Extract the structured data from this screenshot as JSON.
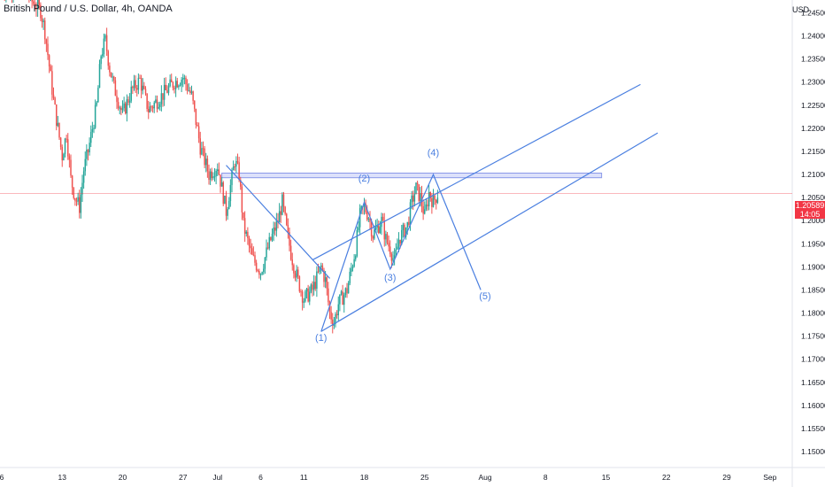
{
  "header": {
    "symbol_title": "British Pound / U.S. Dollar, 4h, OANDA",
    "currency": "USD"
  },
  "price_tag": {
    "price": "1.20589",
    "countdown": "14:05"
  },
  "colors": {
    "bull": "#26a69a",
    "bear": "#ef5350",
    "line": "#4a7fe0",
    "price_line": "#f23645",
    "zone_fill": "#d4dafa",
    "zone_border": "#8a98e8",
    "axis_text": "#131722",
    "grid": "#f0f3fa"
  },
  "chart_data": {
    "type": "candlestick",
    "y_axis": {
      "ticks": [
        "1.24500",
        "1.24000",
        "1.23500",
        "1.23000",
        "1.22500",
        "1.22000",
        "1.21500",
        "1.21000",
        "1.20500",
        "1.20000",
        "1.19500",
        "1.19000",
        "1.18500",
        "1.18000",
        "1.17500",
        "1.17000",
        "1.16500",
        "1.16000",
        "1.15500",
        "1.15000"
      ],
      "range": [
        1.146,
        1.2525
      ]
    },
    "x_axis": {
      "ticks": [
        {
          "label": "6",
          "day": 6
        },
        {
          "label": "13",
          "day": 13
        },
        {
          "label": "20",
          "day": 20
        },
        {
          "label": "27",
          "day": 27
        },
        {
          "label": "Jul",
          "day": 31
        },
        {
          "label": "6",
          "day": 36
        },
        {
          "label": "11",
          "day": 41
        },
        {
          "label": "18",
          "day": 48
        },
        {
          "label": "25",
          "day": 55
        },
        {
          "label": "Aug",
          "day": 62
        },
        {
          "label": "8",
          "day": 69
        },
        {
          "label": "15",
          "day": 76
        },
        {
          "label": "22",
          "day": 83
        },
        {
          "label": "29",
          "day": 90
        },
        {
          "label": "Sep",
          "day": 95
        }
      ]
    },
    "price_path": [
      [
        6.0,
        1.25
      ],
      [
        8.5,
        1.251
      ],
      [
        9.5,
        1.2475
      ],
      [
        10.5,
        1.2455
      ],
      [
        11.0,
        1.241
      ],
      [
        12.0,
        1.226
      ],
      [
        13.0,
        1.214
      ],
      [
        13.5,
        1.219
      ],
      [
        14.0,
        1.209
      ],
      [
        14.5,
        1.205
      ],
      [
        15.0,
        1.203
      ],
      [
        15.5,
        1.211
      ],
      [
        16.0,
        1.215
      ],
      [
        17.0,
        1.225
      ],
      [
        17.5,
        1.236
      ],
      [
        18.0,
        1.239
      ],
      [
        18.5,
        1.233
      ],
      [
        19.0,
        1.229
      ],
      [
        20.0,
        1.223
      ],
      [
        21.0,
        1.228
      ],
      [
        22.0,
        1.2305
      ],
      [
        23.0,
        1.224
      ],
      [
        24.0,
        1.226
      ],
      [
        25.0,
        1.228
      ],
      [
        26.0,
        1.23
      ],
      [
        27.0,
        1.231
      ],
      [
        28.0,
        1.227
      ],
      [
        29.0,
        1.216
      ],
      [
        30.0,
        1.21
      ],
      [
        31.0,
        1.212
      ],
      [
        32.0,
        1.202
      ],
      [
        33.0,
        1.213
      ],
      [
        33.5,
        1.21
      ],
      [
        34.0,
        1.199
      ],
      [
        35.0,
        1.192
      ],
      [
        36.0,
        1.189
      ],
      [
        37.0,
        1.195
      ],
      [
        38.0,
        1.2
      ],
      [
        38.5,
        1.204
      ],
      [
        39.0,
        1.198
      ],
      [
        39.5,
        1.193
      ],
      [
        40.0,
        1.189
      ],
      [
        41.0,
        1.183
      ],
      [
        42.0,
        1.185
      ],
      [
        43.0,
        1.19
      ],
      [
        43.5,
        1.187
      ],
      [
        44.0,
        1.18
      ],
      [
        44.5,
        1.178
      ],
      [
        45.0,
        1.182
      ],
      [
        46.0,
        1.185
      ],
      [
        47.0,
        1.194
      ],
      [
        47.5,
        1.201
      ],
      [
        48.0,
        1.203
      ],
      [
        48.5,
        1.201
      ],
      [
        49.0,
        1.197
      ],
      [
        50.0,
        1.2
      ],
      [
        50.5,
        1.196
      ],
      [
        51.0,
        1.194
      ],
      [
        51.5,
        1.191
      ],
      [
        52.0,
        1.196
      ],
      [
        53.0,
        1.199
      ],
      [
        53.5,
        1.204
      ],
      [
        54.0,
        1.207
      ],
      [
        54.5,
        1.205
      ],
      [
        55.0,
        1.201
      ],
      [
        55.5,
        1.206
      ],
      [
        56.0,
        1.204
      ],
      [
        56.5,
        1.2059
      ]
    ],
    "resistance_zone": {
      "x_from": 31.5,
      "x_to": 75.5,
      "y_low": 1.2093,
      "y_high": 1.2103
    },
    "current_price": 1.20589,
    "trendlines": [
      {
        "points": [
          [
            32.0,
            1.212
          ],
          [
            44.0,
            1.1875
          ]
        ]
      },
      {
        "points": [
          [
            43.0,
            1.176
          ],
          [
            82.0,
            1.219
          ]
        ]
      },
      {
        "points": [
          [
            42.0,
            1.1915
          ],
          [
            80.0,
            1.2295
          ]
        ]
      }
    ],
    "wave_path": [
      [
        43.0,
        1.176
      ],
      [
        48.0,
        1.204
      ],
      [
        51.0,
        1.1895
      ],
      [
        56.0,
        1.21
      ],
      [
        61.5,
        1.185
      ]
    ],
    "wave_labels": [
      {
        "text": "(1)",
        "x": 43.0,
        "y": 1.174
      },
      {
        "text": "(2)",
        "x": 48.0,
        "y": 1.2085
      },
      {
        "text": "(3)",
        "x": 51.0,
        "y": 1.187
      },
      {
        "text": "(4)",
        "x": 56.0,
        "y": 1.214
      },
      {
        "text": "(5)",
        "x": 62.0,
        "y": 1.183
      }
    ]
  }
}
